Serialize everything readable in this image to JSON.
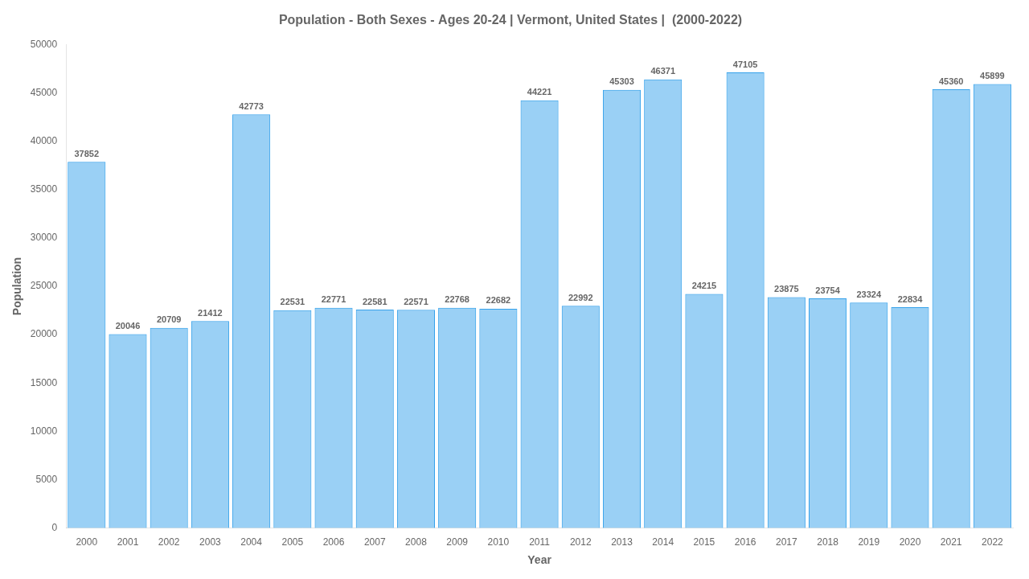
{
  "chart_data": {
    "type": "bar",
    "title": "Population - Both Sexes - Ages 20-24 | Vermont, United States |  (2000-2022)",
    "xlabel": "Year",
    "ylabel": "Population",
    "categories": [
      "2000",
      "2001",
      "2002",
      "2003",
      "2004",
      "2005",
      "2006",
      "2007",
      "2008",
      "2009",
      "2010",
      "2011",
      "2012",
      "2013",
      "2014",
      "2015",
      "2016",
      "2017",
      "2018",
      "2019",
      "2020",
      "2021",
      "2022"
    ],
    "values": [
      37852,
      20046,
      20709,
      21412,
      42773,
      22531,
      22771,
      22581,
      22571,
      22768,
      22682,
      44221,
      22992,
      45303,
      46371,
      24215,
      47105,
      23875,
      23754,
      23324,
      22834,
      45360,
      45899
    ],
    "ylim": [
      0,
      50000
    ],
    "yticks": [
      0,
      5000,
      10000,
      15000,
      20000,
      25000,
      30000,
      35000,
      40000,
      45000,
      50000
    ],
    "grid": false,
    "data_labels": true
  }
}
